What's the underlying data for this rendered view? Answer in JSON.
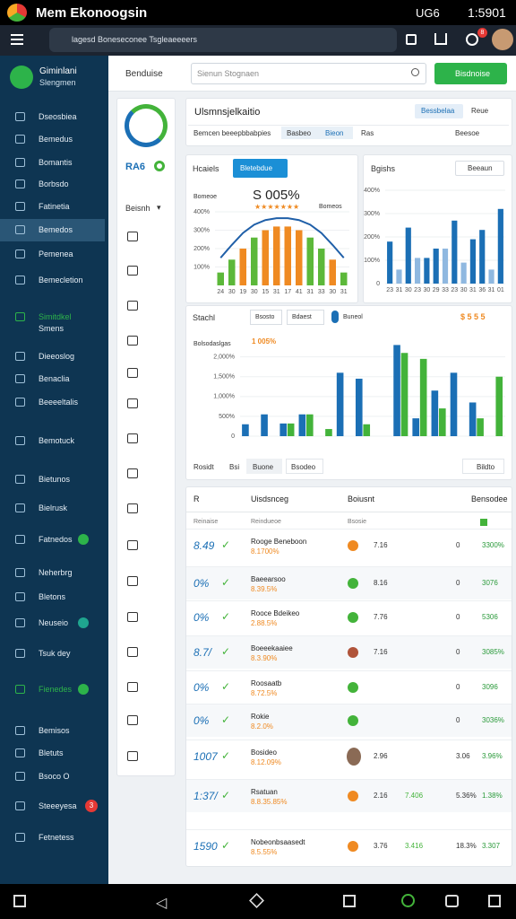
{
  "status_bar": {
    "app_name": "Mem Ekonoogsin",
    "network": "UG6",
    "time": "1:5901"
  },
  "browser": {
    "url": "lagesd Boneseconee Tsgleaeeeers",
    "badge": "8"
  },
  "sidebar": {
    "brand": "Giminlani",
    "brand_sub": "Slengmen",
    "items": [
      {
        "label": "Dseosbiea"
      },
      {
        "label": "Bemedus"
      },
      {
        "label": "Bomantis"
      },
      {
        "label": "Borbsdo"
      },
      {
        "label": "Fatinetia"
      },
      {
        "label": "Bemedos",
        "active": true
      },
      {
        "label": "Pemenea"
      },
      {
        "label": "Bemecletion"
      },
      {
        "label": "Simitdkel",
        "sub": "Smens",
        "accent": "#2db34a"
      },
      {
        "label": "Dieeoslog"
      },
      {
        "label": "Benaclia"
      },
      {
        "label": "Beeeeltalis"
      },
      {
        "label": "Bemotuck"
      },
      {
        "label": "Bietunos"
      },
      {
        "label": "Bielrusk"
      },
      {
        "label": "Fatnedos",
        "dot": "#2db34a"
      },
      {
        "label": "Neherbrg"
      },
      {
        "label": "Bletons"
      },
      {
        "label": "Neuseio",
        "dot": "#1fa58f"
      },
      {
        "label": "Tsuk dey"
      },
      {
        "label": "Fienedes",
        "accent": "#2db34a",
        "dot": "#2db34a"
      },
      {
        "label": "Bemisos"
      },
      {
        "label": "Bletuts"
      },
      {
        "label": "Bsoco O"
      },
      {
        "label": "Steeeyesa",
        "badge": "3"
      },
      {
        "label": "Fetnetess"
      }
    ]
  },
  "header": {
    "title": "Benduise",
    "search": "Sienun Stognaen",
    "button": "Bisdnoise"
  },
  "rail": {
    "metric": "RA6",
    "menu": "Beisnh"
  },
  "panel": {
    "title": "Ulsmnsjelkaitio",
    "tabs": [
      "Bessbelaa",
      "Reue"
    ],
    "filters": [
      "Bemcen beeepbbabpies",
      "Basbeo",
      "Bieon",
      "Ras"
    ],
    "sort": "Beesoe"
  },
  "charts": [
    {
      "type": "bar",
      "title": "Hcaiels",
      "button": "Bletebdue",
      "headline": "S 005%",
      "headline_sub": "Bomeoe",
      "rating_label": "Bomeos",
      "categories": [
        "24",
        "30",
        "19",
        "30",
        "15",
        "31",
        "17",
        "41",
        "31",
        "33",
        "30",
        "31"
      ],
      "values": [
        70,
        140,
        200,
        260,
        300,
        320,
        320,
        300,
        260,
        200,
        140,
        70
      ],
      "colors": [
        "#5cb83a",
        "#5cb83a",
        "#ef8a22",
        "#5cb83a",
        "#ef8a22",
        "#ef8a22",
        "#ef8a22",
        "#ef8a22",
        "#5cb83a",
        "#5cb83a",
        "#ef8a22",
        "#5cb83a"
      ],
      "line": {
        "values": [
          150,
          220,
          285,
          330,
          355,
          365,
          365,
          355,
          330,
          285,
          220,
          150
        ],
        "color": "#1f5fa8"
      },
      "ylim": [
        0,
        400
      ],
      "yticks": [
        {
          "value": 100,
          "label": "100%"
        },
        {
          "value": 200,
          "label": "200%"
        },
        {
          "value": 300,
          "label": "300%"
        },
        {
          "value": 400,
          "label": "400%"
        }
      ]
    },
    {
      "type": "bar",
      "title": "Bgishs",
      "button": "Beeaun",
      "categories": [
        "23",
        "31",
        "30",
        "23",
        "30",
        "29",
        "33",
        "23",
        "30",
        "31",
        "36",
        "31",
        "01"
      ],
      "values": [
        180,
        60,
        240,
        110,
        110,
        150,
        150,
        270,
        90,
        190,
        230,
        60,
        320
      ],
      "colors": [
        "#1b6fb5",
        "#8fb8e0",
        "#1b6fb5",
        "#8fb8e0",
        "#1b6fb5",
        "#1b6fb5",
        "#8fb8e0",
        "#1b6fb5",
        "#8fb8e0",
        "#1b6fb5",
        "#1b6fb5",
        "#8fb8e0",
        "#1b6fb5"
      ],
      "ylim": [
        0,
        400
      ],
      "yticks": [
        0,
        {
          "value": 100,
          "label": "100%"
        },
        {
          "value": 200,
          "label": "200%"
        },
        {
          "value": 300,
          "label": "300%"
        },
        {
          "value": 400,
          "label": "400%"
        }
      ]
    },
    {
      "type": "grouped_bar",
      "title": "Stachl",
      "controls": [
        "Bsosto",
        "Bdaest"
      ],
      "toggle": "Buneol",
      "summary": "$ 5 5 5",
      "axis_label": "Bolsodaslgas",
      "headline": "1 005%",
      "categories": [
        null,
        null,
        null,
        null,
        null,
        null,
        null,
        null,
        null,
        null,
        null,
        null,
        null,
        null
      ],
      "series": [
        {
          "color": "#1b6fb5",
          "values": [
            300,
            550,
            320,
            550,
            0,
            1600,
            1450,
            0,
            2300,
            450,
            1150,
            1600,
            850,
            0
          ]
        },
        {
          "color": "#43b33a",
          "values": [
            0,
            0,
            320,
            550,
            180,
            0,
            300,
            0,
            2100,
            1950,
            700,
            0,
            450,
            1500
          ]
        }
      ],
      "ylim": [
        0,
        2400
      ],
      "yticks": [
        0,
        {
          "value": 500,
          "label": "500%"
        },
        {
          "value": 1000,
          "label": "1,000%"
        },
        {
          "value": 1500,
          "label": "1,500%"
        },
        {
          "value": 2000,
          "label": "2,000%"
        }
      ],
      "footer": [
        "Rosidt",
        "Bsi",
        "Buone",
        "Bsodeo"
      ],
      "footer_right": "Bildto"
    }
  ],
  "table": {
    "columns": [
      "R",
      "Uisdsnceg",
      "Boiusnt",
      "Bensodee"
    ],
    "subheaders": [
      "Reinaise",
      "Reindueoe",
      "Bsosie"
    ],
    "rows": [
      {
        "score": "8.49",
        "name": "Rooge Beneboon",
        "sub": "8.1700%",
        "marker": "#ef8a22",
        "value": "7.16",
        "trend": "0",
        "amount": "3300%"
      },
      {
        "score": "0%",
        "name": "Baeearsoo",
        "sub": "8.39.5%",
        "marker": "#43b33a",
        "value": "8.16",
        "trend": "0",
        "amount": "3076"
      },
      {
        "score": "0%",
        "name": "Rooce Bdeikeo",
        "sub": "2.88.5%",
        "marker": "#43b33a",
        "value": "7.76",
        "trend": "0",
        "amount": "5306"
      },
      {
        "score": "8.7/",
        "name": "Boeeekaaiee",
        "sub": "8.3.90%",
        "marker": "#b0543a",
        "value": "7.16",
        "trend": "0",
        "amount": "3085%"
      },
      {
        "score": "0%",
        "name": "Roosaatb",
        "sub": "8.72.5%",
        "marker": "#43b33a",
        "trend": "0",
        "amount": "3096"
      },
      {
        "score": "0%",
        "name": "Rokie",
        "sub": "8.2.0%",
        "marker": "#43b33a",
        "trend": "0",
        "amount": "3036%"
      },
      {
        "score": "1007",
        "name": "Bosideo",
        "sub": "8.12.09%",
        "marker": "avatar",
        "value": "2.96",
        "trend": "3.06",
        "amount": "3.96%"
      },
      {
        "score": "1:37/",
        "name": "Rsatuan",
        "sub": "8.8.35.85%",
        "marker": "#ef8a22",
        "value": "2.16",
        "extra": "7.406",
        "trend": "5.36%",
        "amount": "1.38%"
      },
      {
        "score": "1590",
        "name": "Nobeonbsaasedt",
        "sub": "8.5.55%",
        "marker": "#ef8a22",
        "value": "3.76",
        "extra": "3.416",
        "trend": "18.3%",
        "amount": "3.307"
      }
    ]
  }
}
